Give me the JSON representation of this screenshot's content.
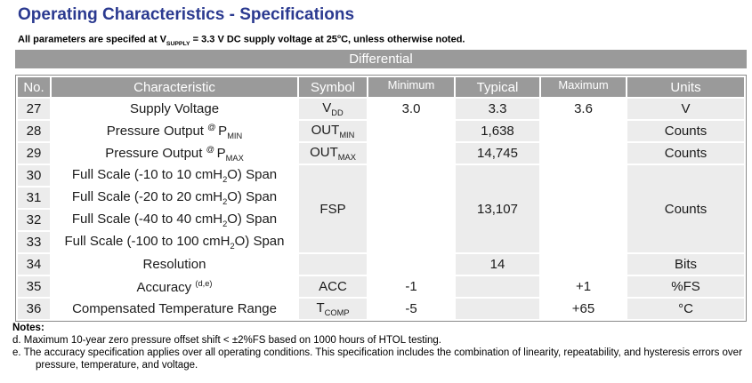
{
  "page": {
    "title": "Operating Characteristics - Specifications",
    "subtitle_segments": [
      {
        "t": "All parameters are specifed at V"
      },
      {
        "t": "SUPPLY",
        "s": "sub"
      },
      {
        "t": " = 3.3 V DC supply voltage at 25",
        "s": null
      },
      {
        "t": "o",
        "s": "sup"
      },
      {
        "t": "C, unless otherwise noted.",
        "s": null
      }
    ]
  },
  "table": {
    "band_label": "Differential",
    "columns": [
      {
        "key": "no",
        "label": "No.",
        "small": false
      },
      {
        "key": "characteristic",
        "label": "Characteristic",
        "small": false
      },
      {
        "key": "symbol",
        "label": "Symbol",
        "small": false
      },
      {
        "key": "minimum",
        "label": "Minimum",
        "small": true
      },
      {
        "key": "typical",
        "label": "Typical",
        "small": false
      },
      {
        "key": "maximum",
        "label": "Maximum",
        "small": true
      },
      {
        "key": "units",
        "label": "Units",
        "small": false
      }
    ],
    "rows": [
      {
        "cells": [
          {
            "col": "no",
            "text": "27"
          },
          {
            "col": "characteristic",
            "seg": [
              {
                "t": "Supply Voltage"
              }
            ]
          },
          {
            "col": "symbol",
            "seg": [
              {
                "t": "V"
              },
              {
                "t": "DD",
                "s": "sub"
              }
            ]
          },
          {
            "col": "minimum",
            "text": "3.0"
          },
          {
            "col": "typical",
            "text": "3.3"
          },
          {
            "col": "maximum",
            "text": "3.6"
          },
          {
            "col": "units",
            "text": "V"
          }
        ]
      },
      {
        "cells": [
          {
            "col": "no",
            "text": "28"
          },
          {
            "col": "characteristic",
            "seg": [
              {
                "t": "Pressure Output "
              },
              {
                "t": "@ ",
                "s": "sup"
              },
              {
                "t": "P"
              },
              {
                "t": "MIN",
                "s": "sub"
              }
            ]
          },
          {
            "col": "symbol",
            "seg": [
              {
                "t": "OUT"
              },
              {
                "t": "MIN",
                "s": "sub"
              }
            ]
          },
          {
            "col": "minimum",
            "text": ""
          },
          {
            "col": "typical",
            "text": "1,638"
          },
          {
            "col": "maximum",
            "text": ""
          },
          {
            "col": "units",
            "text": "Counts"
          }
        ]
      },
      {
        "cells": [
          {
            "col": "no",
            "text": "29"
          },
          {
            "col": "characteristic",
            "seg": [
              {
                "t": "Pressure Output "
              },
              {
                "t": "@ ",
                "s": "sup"
              },
              {
                "t": "P"
              },
              {
                "t": "MAX",
                "s": "sub"
              }
            ]
          },
          {
            "col": "symbol",
            "seg": [
              {
                "t": "OUT"
              },
              {
                "t": "MAX",
                "s": "sub"
              }
            ]
          },
          {
            "col": "minimum",
            "text": ""
          },
          {
            "col": "typical",
            "text": "14,745"
          },
          {
            "col": "maximum",
            "text": ""
          },
          {
            "col": "units",
            "text": "Counts"
          }
        ]
      },
      {
        "cells": [
          {
            "col": "no",
            "text": "30"
          },
          {
            "col": "characteristic",
            "seg": [
              {
                "t": "Full Scale (-10 to 10 cmH"
              },
              {
                "t": "2",
                "s": "sub"
              },
              {
                "t": "O) Span"
              }
            ]
          },
          {
            "col": "symbol",
            "seg": [
              {
                "t": "FSP"
              }
            ],
            "span": 4
          },
          {
            "col": "minimum",
            "text": ""
          },
          {
            "col": "typical",
            "text": "13,107",
            "span": 4
          },
          {
            "col": "maximum",
            "text": ""
          },
          {
            "col": "units",
            "text": "Counts",
            "span": 4
          }
        ]
      },
      {
        "cells": [
          {
            "col": "no",
            "text": "31"
          },
          {
            "col": "characteristic",
            "seg": [
              {
                "t": "Full Scale (-20 to 20 cmH"
              },
              {
                "t": "2",
                "s": "sub"
              },
              {
                "t": "O) Span"
              }
            ]
          },
          {
            "col": "minimum",
            "text": ""
          },
          {
            "col": "maximum",
            "text": ""
          }
        ]
      },
      {
        "cells": [
          {
            "col": "no",
            "text": "32"
          },
          {
            "col": "characteristic",
            "seg": [
              {
                "t": "Full Scale (-40 to 40 cmH"
              },
              {
                "t": "2",
                "s": "sub"
              },
              {
                "t": "O) Span"
              }
            ]
          },
          {
            "col": "minimum",
            "text": ""
          },
          {
            "col": "maximum",
            "text": ""
          }
        ]
      },
      {
        "cells": [
          {
            "col": "no",
            "text": "33"
          },
          {
            "col": "characteristic",
            "seg": [
              {
                "t": "Full Scale (-100 to 100 cmH"
              },
              {
                "t": "2",
                "s": "sub"
              },
              {
                "t": "O) Span"
              }
            ]
          },
          {
            "col": "minimum",
            "text": ""
          },
          {
            "col": "maximum",
            "text": ""
          }
        ]
      },
      {
        "cells": [
          {
            "col": "no",
            "text": "34"
          },
          {
            "col": "characteristic",
            "seg": [
              {
                "t": "Resolution"
              }
            ]
          },
          {
            "col": "symbol",
            "text": ""
          },
          {
            "col": "minimum",
            "text": ""
          },
          {
            "col": "typical",
            "text": "14"
          },
          {
            "col": "maximum",
            "text": ""
          },
          {
            "col": "units",
            "text": "Bits"
          }
        ]
      },
      {
        "cells": [
          {
            "col": "no",
            "text": "35"
          },
          {
            "col": "characteristic",
            "seg": [
              {
                "t": "Accuracy "
              },
              {
                "t": "(d,e)",
                "s": "sup"
              }
            ]
          },
          {
            "col": "symbol",
            "seg": [
              {
                "t": "ACC"
              }
            ]
          },
          {
            "col": "minimum",
            "text": "-1"
          },
          {
            "col": "typical",
            "text": ""
          },
          {
            "col": "maximum",
            "text": "+1"
          },
          {
            "col": "units",
            "text": "%FS"
          }
        ]
      },
      {
        "cells": [
          {
            "col": "no",
            "text": "36"
          },
          {
            "col": "characteristic",
            "seg": [
              {
                "t": "Compensated Temperature Range"
              }
            ]
          },
          {
            "col": "symbol",
            "seg": [
              {
                "t": "T"
              },
              {
                "t": "COMP",
                "s": "sub"
              }
            ]
          },
          {
            "col": "minimum",
            "text": "-5"
          },
          {
            "col": "typical",
            "text": ""
          },
          {
            "col": "maximum",
            "text": "+65"
          },
          {
            "col": "units",
            "text": "°C"
          }
        ]
      }
    ]
  },
  "notes": {
    "heading": "Notes:",
    "items": [
      "d. Maximum 10-year zero pressure offset shift <  ±2%FS based on 1000 hours of HTOL testing.",
      "e. The accuracy specification applies over all operating conditions. This specification includes the combination of linearity, repeatability, and hysteresis errors over pressure, temperature, and voltage."
    ]
  },
  "colors": {
    "title_blue": "#2b3a90",
    "header_gray": "#9a9a9a",
    "cell_gray": "#ececec",
    "border_gray": "#8a8a8a"
  }
}
